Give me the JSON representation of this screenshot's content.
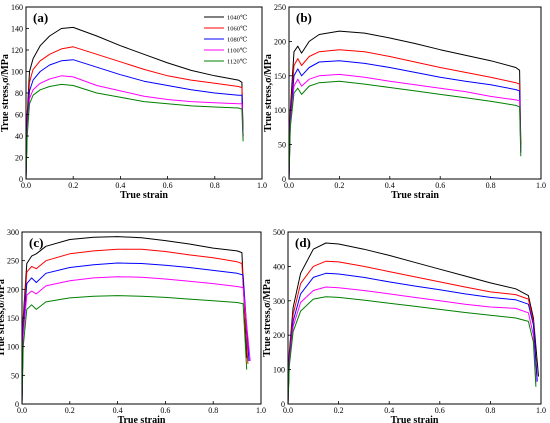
{
  "chart_data": [
    {
      "type": "line",
      "panel_label": "(a)",
      "xlabel": "True strain",
      "ylabel": "True stress,σ/MPa",
      "xlim": [
        0,
        1.0
      ],
      "ylim": [
        0,
        160
      ],
      "xticks": [
        0.0,
        0.2,
        0.4,
        0.6,
        0.8,
        1.0
      ],
      "yticks": [
        0,
        20,
        40,
        60,
        80,
        100,
        120,
        140,
        160
      ],
      "legend": "top-right",
      "series": [
        {
          "name": "1040℃",
          "color": "#000000",
          "x": [
            0,
            0.005,
            0.015,
            0.03,
            0.06,
            0.1,
            0.15,
            0.2,
            0.3,
            0.4,
            0.5,
            0.6,
            0.7,
            0.8,
            0.9,
            0.915,
            0.92
          ],
          "y": [
            0,
            60,
            100,
            112,
            124,
            133,
            140,
            141,
            133,
            124,
            116,
            108,
            101,
            96,
            92,
            90,
            40
          ]
        },
        {
          "name": "1060℃",
          "color": "#ff0000",
          "x": [
            0,
            0.005,
            0.015,
            0.03,
            0.06,
            0.1,
            0.15,
            0.2,
            0.3,
            0.4,
            0.5,
            0.6,
            0.7,
            0.8,
            0.9,
            0.915,
            0.92
          ],
          "y": [
            0,
            55,
            90,
            102,
            110,
            116,
            121,
            123,
            116,
            109,
            102,
            96,
            92,
            89,
            86,
            85,
            40
          ]
        },
        {
          "name": "1080℃",
          "color": "#0000ff",
          "x": [
            0,
            0.005,
            0.015,
            0.03,
            0.06,
            0.1,
            0.15,
            0.2,
            0.3,
            0.4,
            0.5,
            0.6,
            0.7,
            0.8,
            0.9,
            0.915,
            0.92
          ],
          "y": [
            0,
            50,
            82,
            92,
            100,
            106,
            110,
            111,
            104,
            97,
            91,
            87,
            83,
            80,
            78,
            78,
            40
          ]
        },
        {
          "name": "1100℃",
          "color": "#ff00ff",
          "x": [
            0,
            0.005,
            0.015,
            0.03,
            0.06,
            0.1,
            0.15,
            0.2,
            0.3,
            0.4,
            0.5,
            0.6,
            0.7,
            0.8,
            0.9,
            0.915,
            0.92
          ],
          "y": [
            0,
            45,
            75,
            83,
            89,
            93,
            96,
            95,
            87,
            82,
            77,
            74,
            72,
            71,
            70,
            70,
            38
          ]
        },
        {
          "name": "1120℃",
          "color": "#008000",
          "x": [
            0,
            0.005,
            0.015,
            0.03,
            0.06,
            0.1,
            0.15,
            0.2,
            0.3,
            0.4,
            0.5,
            0.6,
            0.7,
            0.8,
            0.9,
            0.915,
            0.92
          ],
          "y": [
            0,
            40,
            70,
            78,
            83,
            86,
            88,
            87,
            80,
            76,
            72,
            70,
            68,
            67,
            66,
            65,
            35
          ]
        }
      ]
    },
    {
      "type": "line",
      "panel_label": "(b)",
      "xlabel": "True strain",
      "ylabel": "True stress,σ/MPa",
      "xlim": [
        0,
        1.0
      ],
      "ylim": [
        0,
        250
      ],
      "xticks": [
        0.0,
        0.2,
        0.4,
        0.6,
        0.8,
        1.0
      ],
      "yticks": [
        0,
        50,
        100,
        150,
        200,
        250
      ],
      "series": [
        {
          "name": "",
          "color": "#000000",
          "x": [
            0,
            0.005,
            0.02,
            0.035,
            0.05,
            0.08,
            0.12,
            0.2,
            0.3,
            0.4,
            0.5,
            0.6,
            0.7,
            0.8,
            0.9,
            0.915,
            0.92
          ],
          "y": [
            0,
            100,
            185,
            193,
            183,
            200,
            210,
            215,
            212,
            205,
            197,
            188,
            180,
            172,
            162,
            158,
            50
          ]
        },
        {
          "name": "",
          "color": "#ff0000",
          "x": [
            0,
            0.005,
            0.02,
            0.035,
            0.05,
            0.08,
            0.12,
            0.2,
            0.3,
            0.4,
            0.5,
            0.6,
            0.7,
            0.8,
            0.9,
            0.915,
            0.92
          ],
          "y": [
            0,
            90,
            165,
            175,
            165,
            178,
            185,
            188,
            185,
            178,
            170,
            162,
            155,
            148,
            140,
            138,
            45
          ]
        },
        {
          "name": "",
          "color": "#0000ff",
          "x": [
            0,
            0.005,
            0.02,
            0.035,
            0.05,
            0.08,
            0.12,
            0.2,
            0.3,
            0.4,
            0.5,
            0.6,
            0.7,
            0.8,
            0.9,
            0.915,
            0.92
          ],
          "y": [
            0,
            85,
            150,
            160,
            150,
            162,
            170,
            172,
            168,
            162,
            155,
            148,
            142,
            137,
            130,
            128,
            40
          ]
        },
        {
          "name": "",
          "color": "#ff00ff",
          "x": [
            0,
            0.005,
            0.02,
            0.035,
            0.05,
            0.08,
            0.12,
            0.2,
            0.3,
            0.4,
            0.5,
            0.6,
            0.7,
            0.8,
            0.9,
            0.915,
            0.92
          ],
          "y": [
            0,
            80,
            135,
            145,
            135,
            145,
            150,
            152,
            148,
            142,
            137,
            132,
            127,
            120,
            115,
            114,
            38
          ]
        },
        {
          "name": "",
          "color": "#008000",
          "x": [
            0,
            0.005,
            0.02,
            0.035,
            0.05,
            0.08,
            0.12,
            0.2,
            0.3,
            0.4,
            0.5,
            0.6,
            0.7,
            0.8,
            0.9,
            0.915,
            0.92
          ],
          "y": [
            0,
            75,
            125,
            132,
            123,
            135,
            140,
            142,
            138,
            133,
            128,
            123,
            118,
            113,
            107,
            105,
            33
          ]
        }
      ]
    },
    {
      "type": "line",
      "panel_label": "(c)",
      "xlabel": "True strain",
      "ylabel": "True stress,σ/MPa",
      "xlim": [
        0,
        1.0
      ],
      "ylim": [
        0,
        300
      ],
      "xticks": [
        0.0,
        0.2,
        0.4,
        0.6,
        0.8,
        1.0
      ],
      "yticks": [
        0,
        50,
        100,
        150,
        200,
        250,
        300
      ],
      "series": [
        {
          "name": "",
          "color": "#000000",
          "x": [
            0,
            0.005,
            0.02,
            0.04,
            0.06,
            0.1,
            0.2,
            0.3,
            0.4,
            0.5,
            0.6,
            0.7,
            0.8,
            0.9,
            0.92,
            0.94
          ],
          "y": [
            0,
            150,
            245,
            258,
            262,
            275,
            287,
            291,
            292,
            290,
            285,
            279,
            272,
            267,
            264,
            80
          ]
        },
        {
          "name": "",
          "color": "#ff0000",
          "x": [
            0,
            0.005,
            0.02,
            0.04,
            0.06,
            0.1,
            0.2,
            0.3,
            0.4,
            0.5,
            0.6,
            0.7,
            0.8,
            0.9,
            0.92,
            0.945
          ],
          "y": [
            0,
            140,
            230,
            240,
            236,
            250,
            262,
            267,
            270,
            270,
            266,
            260,
            255,
            248,
            245,
            70
          ]
        },
        {
          "name": "",
          "color": "#0000ff",
          "x": [
            0,
            0.005,
            0.02,
            0.04,
            0.06,
            0.1,
            0.2,
            0.3,
            0.4,
            0.5,
            0.6,
            0.7,
            0.8,
            0.9,
            0.925,
            0.95
          ],
          "y": [
            0,
            130,
            210,
            220,
            212,
            228,
            238,
            243,
            246,
            245,
            242,
            238,
            233,
            228,
            225,
            75
          ]
        },
        {
          "name": "",
          "color": "#ff00ff",
          "x": [
            0,
            0.005,
            0.02,
            0.04,
            0.06,
            0.1,
            0.2,
            0.3,
            0.4,
            0.5,
            0.6,
            0.7,
            0.8,
            0.9,
            0.925,
            0.955
          ],
          "y": [
            0,
            120,
            190,
            197,
            192,
            206,
            215,
            220,
            222,
            221,
            218,
            214,
            210,
            205,
            203,
            75
          ]
        },
        {
          "name": "",
          "color": "#008000",
          "x": [
            0,
            0.005,
            0.02,
            0.04,
            0.06,
            0.1,
            0.2,
            0.3,
            0.4,
            0.5,
            0.6,
            0.7,
            0.8,
            0.9,
            0.925,
            0.94
          ],
          "y": [
            0,
            100,
            165,
            173,
            165,
            178,
            185,
            188,
            189,
            188,
            186,
            183,
            180,
            177,
            175,
            60
          ]
        }
      ]
    },
    {
      "type": "line",
      "panel_label": "(d)",
      "xlabel": "True strain",
      "ylabel": "True stress,σ/MPa",
      "xlim": [
        0,
        1.0
      ],
      "ylim": [
        0,
        500
      ],
      "xticks": [
        0.0,
        0.2,
        0.4,
        0.6,
        0.8,
        1.0
      ],
      "yticks": [
        0,
        100,
        200,
        300,
        400,
        500
      ],
      "series": [
        {
          "name": "",
          "color": "#000000",
          "x": [
            0,
            0.005,
            0.02,
            0.05,
            0.1,
            0.15,
            0.2,
            0.3,
            0.4,
            0.5,
            0.6,
            0.7,
            0.8,
            0.9,
            0.95,
            0.97,
            0.99
          ],
          "y": [
            0,
            150,
            280,
            380,
            450,
            468,
            465,
            450,
            432,
            412,
            392,
            372,
            352,
            335,
            315,
            250,
            80
          ]
        },
        {
          "name": "",
          "color": "#ff0000",
          "x": [
            0,
            0.005,
            0.02,
            0.05,
            0.1,
            0.15,
            0.2,
            0.3,
            0.4,
            0.5,
            0.6,
            0.7,
            0.8,
            0.9,
            0.95,
            0.97,
            0.985
          ],
          "y": [
            0,
            140,
            260,
            350,
            400,
            415,
            413,
            400,
            385,
            370,
            355,
            340,
            326,
            318,
            305,
            240,
            70
          ]
        },
        {
          "name": "",
          "color": "#0000ff",
          "x": [
            0,
            0.005,
            0.02,
            0.05,
            0.1,
            0.15,
            0.2,
            0.3,
            0.4,
            0.5,
            0.6,
            0.7,
            0.8,
            0.9,
            0.95,
            0.97,
            0.985
          ],
          "y": [
            0,
            130,
            240,
            320,
            368,
            380,
            378,
            368,
            355,
            343,
            332,
            320,
            310,
            303,
            290,
            230,
            65
          ]
        },
        {
          "name": "",
          "color": "#ff00ff",
          "x": [
            0,
            0.005,
            0.02,
            0.05,
            0.1,
            0.15,
            0.2,
            0.3,
            0.4,
            0.5,
            0.6,
            0.7,
            0.8,
            0.9,
            0.95,
            0.97,
            0.98
          ],
          "y": [
            0,
            120,
            225,
            295,
            330,
            340,
            338,
            330,
            320,
            310,
            300,
            290,
            282,
            278,
            265,
            200,
            60
          ]
        },
        {
          "name": "",
          "color": "#008000",
          "x": [
            0,
            0.005,
            0.02,
            0.05,
            0.1,
            0.15,
            0.2,
            0.3,
            0.4,
            0.5,
            0.6,
            0.7,
            0.8,
            0.9,
            0.95,
            0.97,
            0.98
          ],
          "y": [
            0,
            110,
            210,
            270,
            305,
            312,
            310,
            302,
            293,
            284,
            275,
            266,
            258,
            250,
            240,
            180,
            50
          ]
        }
      ]
    }
  ]
}
